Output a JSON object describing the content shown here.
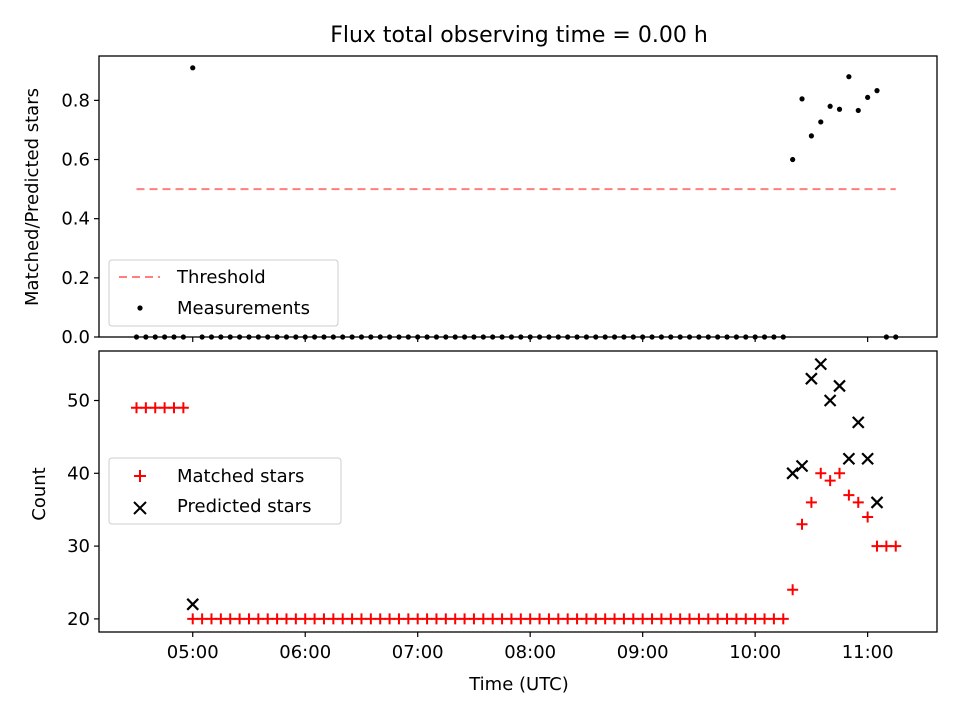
{
  "title": "Flux total observing time = 0.00 h",
  "chart_data": [
    {
      "type": "scatter",
      "ylabel": "Matched/Predicted stars",
      "xlim": [
        "04:10",
        "11:37"
      ],
      "ylim": [
        0,
        0.95
      ],
      "yticks": [
        0.0,
        0.2,
        0.4,
        0.6,
        0.8
      ],
      "ytick_labels": [
        "0.0",
        "0.2",
        "0.4",
        "0.6",
        "0.8"
      ],
      "grid": false,
      "legend_position": "lower-left",
      "threshold": {
        "name": "Threshold",
        "y": 0.5,
        "x_range": [
          "04:30",
          "11:15"
        ],
        "color": "#ff7f7f",
        "style": "dashed"
      },
      "series": [
        {
          "name": "Measurements",
          "marker": "dot",
          "color": "#000000",
          "points": [
            [
              "04:30",
              0
            ],
            [
              "04:35",
              0
            ],
            [
              "04:40",
              0
            ],
            [
              "04:45",
              0
            ],
            [
              "04:50",
              0
            ],
            [
              "04:55",
              0
            ],
            [
              "05:00",
              0.91
            ],
            [
              "05:05",
              0
            ],
            [
              "05:10",
              0
            ],
            [
              "05:15",
              0
            ],
            [
              "05:20",
              0
            ],
            [
              "05:25",
              0
            ],
            [
              "05:30",
              0
            ],
            [
              "05:35",
              0
            ],
            [
              "05:40",
              0
            ],
            [
              "05:45",
              0
            ],
            [
              "05:50",
              0
            ],
            [
              "05:55",
              0
            ],
            [
              "06:00",
              0
            ],
            [
              "06:05",
              0
            ],
            [
              "06:10",
              0
            ],
            [
              "06:15",
              0
            ],
            [
              "06:20",
              0
            ],
            [
              "06:25",
              0
            ],
            [
              "06:30",
              0
            ],
            [
              "06:35",
              0
            ],
            [
              "06:40",
              0
            ],
            [
              "06:45",
              0
            ],
            [
              "06:50",
              0
            ],
            [
              "06:55",
              0
            ],
            [
              "07:00",
              0
            ],
            [
              "07:05",
              0
            ],
            [
              "07:10",
              0
            ],
            [
              "07:15",
              0
            ],
            [
              "07:20",
              0
            ],
            [
              "07:25",
              0
            ],
            [
              "07:30",
              0
            ],
            [
              "07:35",
              0
            ],
            [
              "07:40",
              0
            ],
            [
              "07:45",
              0
            ],
            [
              "07:50",
              0
            ],
            [
              "07:55",
              0
            ],
            [
              "08:00",
              0
            ],
            [
              "08:05",
              0
            ],
            [
              "08:10",
              0
            ],
            [
              "08:15",
              0
            ],
            [
              "08:20",
              0
            ],
            [
              "08:25",
              0
            ],
            [
              "08:30",
              0
            ],
            [
              "08:35",
              0
            ],
            [
              "08:40",
              0
            ],
            [
              "08:45",
              0
            ],
            [
              "08:50",
              0
            ],
            [
              "08:55",
              0
            ],
            [
              "09:00",
              0
            ],
            [
              "09:05",
              0
            ],
            [
              "09:10",
              0
            ],
            [
              "09:15",
              0
            ],
            [
              "09:20",
              0
            ],
            [
              "09:25",
              0
            ],
            [
              "09:30",
              0
            ],
            [
              "09:35",
              0
            ],
            [
              "09:40",
              0
            ],
            [
              "09:45",
              0
            ],
            [
              "09:50",
              0
            ],
            [
              "09:55",
              0
            ],
            [
              "10:00",
              0
            ],
            [
              "10:05",
              0
            ],
            [
              "10:10",
              0
            ],
            [
              "10:15",
              0
            ],
            [
              "10:20",
              0.6
            ],
            [
              "10:25",
              0.805
            ],
            [
              "10:30",
              0.68
            ],
            [
              "10:35",
              0.727
            ],
            [
              "10:40",
              0.78
            ],
            [
              "10:45",
              0.77
            ],
            [
              "10:50",
              0.88
            ],
            [
              "10:55",
              0.766
            ],
            [
              "11:00",
              0.81
            ],
            [
              "11:05",
              0.833
            ],
            [
              "11:10",
              0
            ],
            [
              "11:15",
              0
            ]
          ]
        }
      ]
    },
    {
      "type": "scatter",
      "xlabel": "Time (UTC)",
      "ylabel": "Count",
      "xlim": [
        "04:10",
        "11:37"
      ],
      "ylim": [
        18.2,
        56.8
      ],
      "xticks": [
        "05:00",
        "06:00",
        "07:00",
        "08:00",
        "09:00",
        "10:00",
        "11:00"
      ],
      "yticks": [
        20,
        30,
        40,
        50
      ],
      "ytick_labels": [
        "20",
        "30",
        "40",
        "50"
      ],
      "grid": false,
      "legend_position": "center-left",
      "series": [
        {
          "name": "Matched stars",
          "marker": "plus",
          "color": "#ff0000",
          "points": [
            [
              "04:30",
              49
            ],
            [
              "04:35",
              49
            ],
            [
              "04:40",
              49
            ],
            [
              "04:45",
              49
            ],
            [
              "04:50",
              49
            ],
            [
              "04:55",
              49
            ],
            [
              "05:00",
              20
            ],
            [
              "05:05",
              20
            ],
            [
              "05:10",
              20
            ],
            [
              "05:15",
              20
            ],
            [
              "05:20",
              20
            ],
            [
              "05:25",
              20
            ],
            [
              "05:30",
              20
            ],
            [
              "05:35",
              20
            ],
            [
              "05:40",
              20
            ],
            [
              "05:45",
              20
            ],
            [
              "05:50",
              20
            ],
            [
              "05:55",
              20
            ],
            [
              "06:00",
              20
            ],
            [
              "06:05",
              20
            ],
            [
              "06:10",
              20
            ],
            [
              "06:15",
              20
            ],
            [
              "06:20",
              20
            ],
            [
              "06:25",
              20
            ],
            [
              "06:30",
              20
            ],
            [
              "06:35",
              20
            ],
            [
              "06:40",
              20
            ],
            [
              "06:45",
              20
            ],
            [
              "06:50",
              20
            ],
            [
              "06:55",
              20
            ],
            [
              "07:00",
              20
            ],
            [
              "07:05",
              20
            ],
            [
              "07:10",
              20
            ],
            [
              "07:15",
              20
            ],
            [
              "07:20",
              20
            ],
            [
              "07:25",
              20
            ],
            [
              "07:30",
              20
            ],
            [
              "07:35",
              20
            ],
            [
              "07:40",
              20
            ],
            [
              "07:45",
              20
            ],
            [
              "07:50",
              20
            ],
            [
              "07:55",
              20
            ],
            [
              "08:00",
              20
            ],
            [
              "08:05",
              20
            ],
            [
              "08:10",
              20
            ],
            [
              "08:15",
              20
            ],
            [
              "08:20",
              20
            ],
            [
              "08:25",
              20
            ],
            [
              "08:30",
              20
            ],
            [
              "08:35",
              20
            ],
            [
              "08:40",
              20
            ],
            [
              "08:45",
              20
            ],
            [
              "08:50",
              20
            ],
            [
              "08:55",
              20
            ],
            [
              "09:00",
              20
            ],
            [
              "09:05",
              20
            ],
            [
              "09:10",
              20
            ],
            [
              "09:15",
              20
            ],
            [
              "09:20",
              20
            ],
            [
              "09:25",
              20
            ],
            [
              "09:30",
              20
            ],
            [
              "09:35",
              20
            ],
            [
              "09:40",
              20
            ],
            [
              "09:45",
              20
            ],
            [
              "09:50",
              20
            ],
            [
              "09:55",
              20
            ],
            [
              "10:00",
              20
            ],
            [
              "10:05",
              20
            ],
            [
              "10:10",
              20
            ],
            [
              "10:15",
              20
            ],
            [
              "10:20",
              24
            ],
            [
              "10:25",
              33
            ],
            [
              "10:30",
              36
            ],
            [
              "10:35",
              40
            ],
            [
              "10:40",
              39
            ],
            [
              "10:45",
              40
            ],
            [
              "10:50",
              37
            ],
            [
              "10:55",
              36
            ],
            [
              "11:00",
              34
            ],
            [
              "11:05",
              30
            ],
            [
              "11:10",
              30
            ],
            [
              "11:15",
              30
            ]
          ]
        },
        {
          "name": "Predicted stars",
          "marker": "x",
          "color": "#000000",
          "points": [
            [
              "05:00",
              22
            ],
            [
              "10:20",
              40
            ],
            [
              "10:25",
              41
            ],
            [
              "10:30",
              53
            ],
            [
              "10:35",
              55
            ],
            [
              "10:40",
              50
            ],
            [
              "10:45",
              52
            ],
            [
              "10:50",
              42
            ],
            [
              "10:55",
              47
            ],
            [
              "11:00",
              42
            ],
            [
              "11:05",
              36
            ]
          ]
        }
      ]
    }
  ]
}
